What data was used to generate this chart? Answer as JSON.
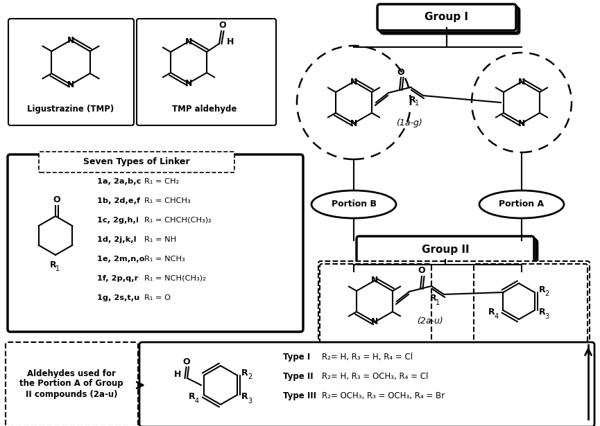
{
  "bg_color": "#ffffff",
  "fig_width": 8.65,
  "fig_height": 6.15,
  "labels": {
    "ligustrazine": "Ligustrazine (TMP)",
    "tmp_aldehyde": "TMP aldehyde",
    "group1": "Group I",
    "group2": "Group II",
    "portion_a": "Portion A",
    "portion_b": "Portion B",
    "compound1": "(1a-g)",
    "compound2": "(2a-u)",
    "seven_linker": "Seven Types of Linker",
    "aldehydes": "Aldehydes used for\nthe Portion A of Group\nII compounds (2a-u)",
    "linker_lines": [
      [
        "1a, 2a,b,c",
        "R₁ = CH₂"
      ],
      [
        "1b, 2d,e,f",
        "R₁ = CHCH₃"
      ],
      [
        "1c, 2g,h,i",
        "R₁ = CHCH(CH₃)₂"
      ],
      [
        "1d, 2j,k,l",
        "R₁ = NH"
      ],
      [
        "1e, 2m,n,o",
        "R₁ = NCH₃"
      ],
      [
        "1f, 2p,q,r",
        "R₁ = NCH(CH₃)₂"
      ],
      [
        "1g, 2s,t,u",
        "R₁ = O"
      ]
    ],
    "type_lines": [
      [
        "Type I",
        "R₂= H, R₃ = H, R₄ = Cl"
      ],
      [
        "Type II",
        "R₂= H, R₃ = OCH₃, R₄ = Cl"
      ],
      [
        "Type III",
        "R₂= OCH₃, R₃ = OCH₃, R₄ = Br"
      ]
    ]
  }
}
